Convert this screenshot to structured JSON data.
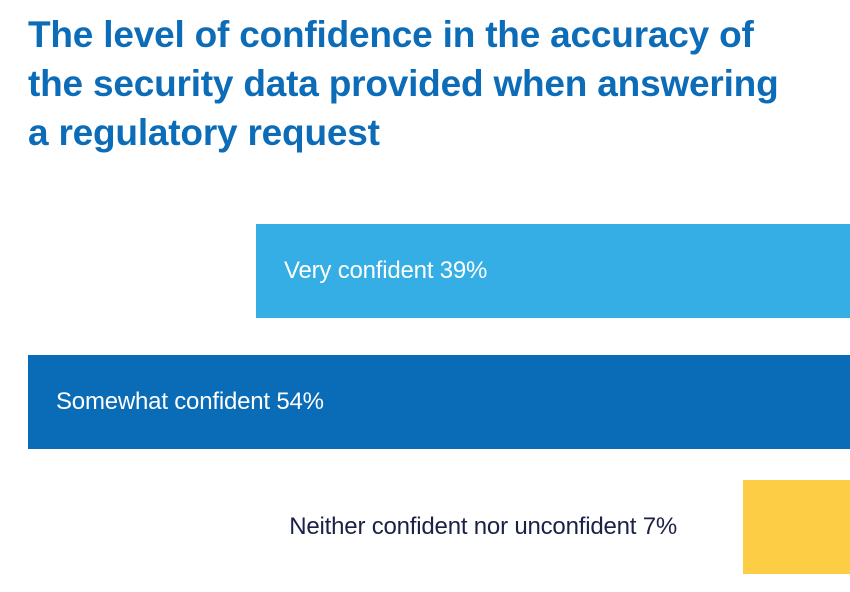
{
  "title": "The level of confidence in the accuracy of the security data provided when answering a regulatory request",
  "chart_data": {
    "type": "bar",
    "orientation": "horizontal",
    "categories": [
      "Very confident",
      "Somewhat confident",
      "Neither confident nor unconfident"
    ],
    "values": [
      39,
      54,
      7
    ],
    "labels": [
      "Very confident 39%",
      "Somewhat confident 54%",
      "Neither confident nor unconfident 7%"
    ],
    "colors": [
      "#34AEE4",
      "#0A6BB7",
      "#FDCE45"
    ],
    "label_colors": [
      "#ffffff",
      "#ffffff",
      "#1B2146"
    ],
    "unit": "%",
    "grid": false,
    "legend": "none"
  }
}
